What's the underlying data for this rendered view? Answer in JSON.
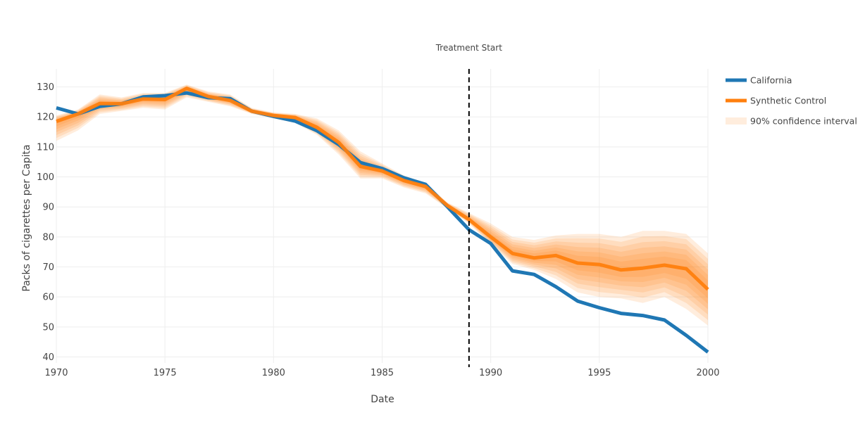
{
  "chart_data": {
    "type": "line",
    "title": "",
    "xlabel": "Date",
    "ylabel": "Packs of cigarettes per Capita",
    "xlim": [
      1970,
      2000
    ],
    "ylim": [
      38,
      136
    ],
    "x_ticks": [
      1970,
      1975,
      1980,
      1985,
      1990,
      1995,
      2000
    ],
    "y_ticks": [
      40,
      50,
      60,
      70,
      80,
      90,
      100,
      110,
      120,
      130
    ],
    "grid": true,
    "legend_position": "top-right",
    "annotation": {
      "text": "Treatment Start",
      "x": 1989,
      "style": "dashed vertical line"
    },
    "x": [
      1970,
      1971,
      1972,
      1973,
      1974,
      1975,
      1976,
      1977,
      1978,
      1979,
      1980,
      1981,
      1982,
      1983,
      1984,
      1985,
      1986,
      1987,
      1988,
      1989,
      1990,
      1991,
      1992,
      1993,
      1994,
      1995,
      1996,
      1997,
      1998,
      1999,
      2000
    ],
    "series": [
      {
        "name": "California",
        "color": "#1f77b4",
        "values": [
          123.0,
          121.0,
          123.5,
          124.4,
          126.7,
          127.1,
          128.0,
          126.4,
          126.1,
          121.9,
          120.2,
          118.6,
          115.4,
          110.8,
          104.8,
          102.8,
          99.7,
          97.5,
          90.1,
          82.4,
          77.8,
          68.7,
          67.5,
          63.4,
          58.6,
          56.4,
          54.5,
          53.8,
          52.3,
          47.2,
          41.6
        ]
      },
      {
        "name": "Synthetic Control",
        "color": "#ff7f0e",
        "values": [
          118.5,
          121.0,
          124.5,
          124.4,
          126.0,
          125.8,
          129.5,
          126.8,
          125.5,
          121.9,
          120.5,
          119.8,
          116.5,
          111.5,
          103.5,
          102.0,
          98.8,
          96.8,
          90.5,
          85.8,
          80.0,
          74.5,
          73.0,
          73.8,
          71.3,
          70.8,
          69.0,
          69.6,
          70.6,
          69.4,
          62.5
        ]
      }
    ],
    "confidence_interval": {
      "name": "90% confidence interval",
      "color": "#ff7f0e",
      "lower": [
        112.0,
        115.5,
        121.0,
        122.0,
        123.0,
        122.5,
        126.5,
        125.0,
        123.5,
        121.0,
        119.5,
        118.0,
        114.0,
        107.5,
        99.5,
        99.5,
        96.5,
        94.5,
        89.5,
        84.5,
        77.5,
        71.0,
        69.0,
        66.0,
        61.5,
        60.0,
        59.5,
        58.0,
        60.0,
        56.0,
        50.5
      ],
      "upper": [
        120.5,
        122.5,
        127.5,
        126.5,
        128.0,
        128.0,
        130.8,
        128.5,
        127.5,
        123.0,
        121.5,
        121.0,
        119.5,
        115.5,
        108.5,
        104.5,
        100.5,
        98.0,
        91.5,
        88.0,
        84.5,
        80.0,
        79.0,
        80.5,
        81.0,
        81.0,
        80.0,
        82.0,
        82.0,
        81.0,
        74.5
      ]
    }
  }
}
